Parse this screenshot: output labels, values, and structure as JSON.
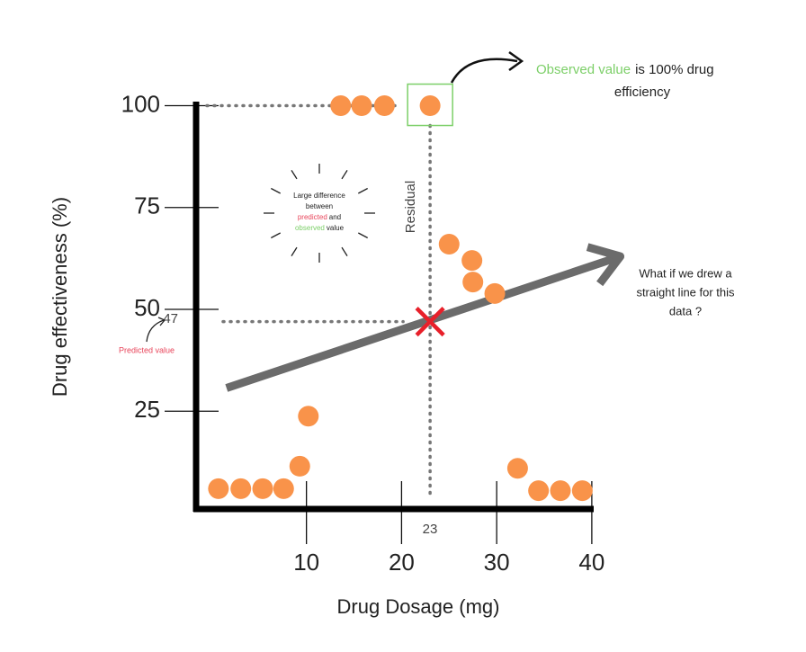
{
  "chart_data": {
    "type": "scatter",
    "xlabel": "Drug Dosage (mg)",
    "ylabel": "Drug effectiveness (%)",
    "xlim": [
      -1.6,
      40.2
    ],
    "ylim": [
      1,
      101
    ],
    "xticks": [
      10,
      20,
      30,
      40
    ],
    "yticks": [
      25,
      50,
      75,
      100
    ],
    "color": "#f9934a",
    "x": [
      0.75,
      3.1,
      5.4,
      7.6,
      9.3,
      10.2,
      13.6,
      15.8,
      18.2,
      23,
      25,
      27.4,
      27.5,
      29.8,
      32.2,
      34.4,
      36.7,
      39
    ],
    "y": [
      6,
      6,
      6,
      6,
      11.5,
      23.8,
      100,
      100,
      100,
      100,
      66,
      62,
      56.7,
      53.9,
      11,
      5.5,
      5.5,
      5.5
    ],
    "trend_line": {
      "x": [
        1.6,
        43
      ],
      "y": [
        30.7,
        63
      ],
      "color": "#6b6b6b"
    },
    "predicted": {
      "x": 23,
      "y": 47,
      "label": "Predicted value"
    },
    "residual_label": "Residual",
    "observed_note": {
      "highlight": "Observed value",
      "rest": "is 100% drug",
      "line2": "efficiency"
    },
    "question": [
      "What if we drew a",
      "straight line for this",
      "data ?"
    ],
    "callout": {
      "line1": "Large difference",
      "line2": "between",
      "predicted": "predicted",
      "and": "and",
      "observed": "observed",
      "value": "value"
    }
  }
}
